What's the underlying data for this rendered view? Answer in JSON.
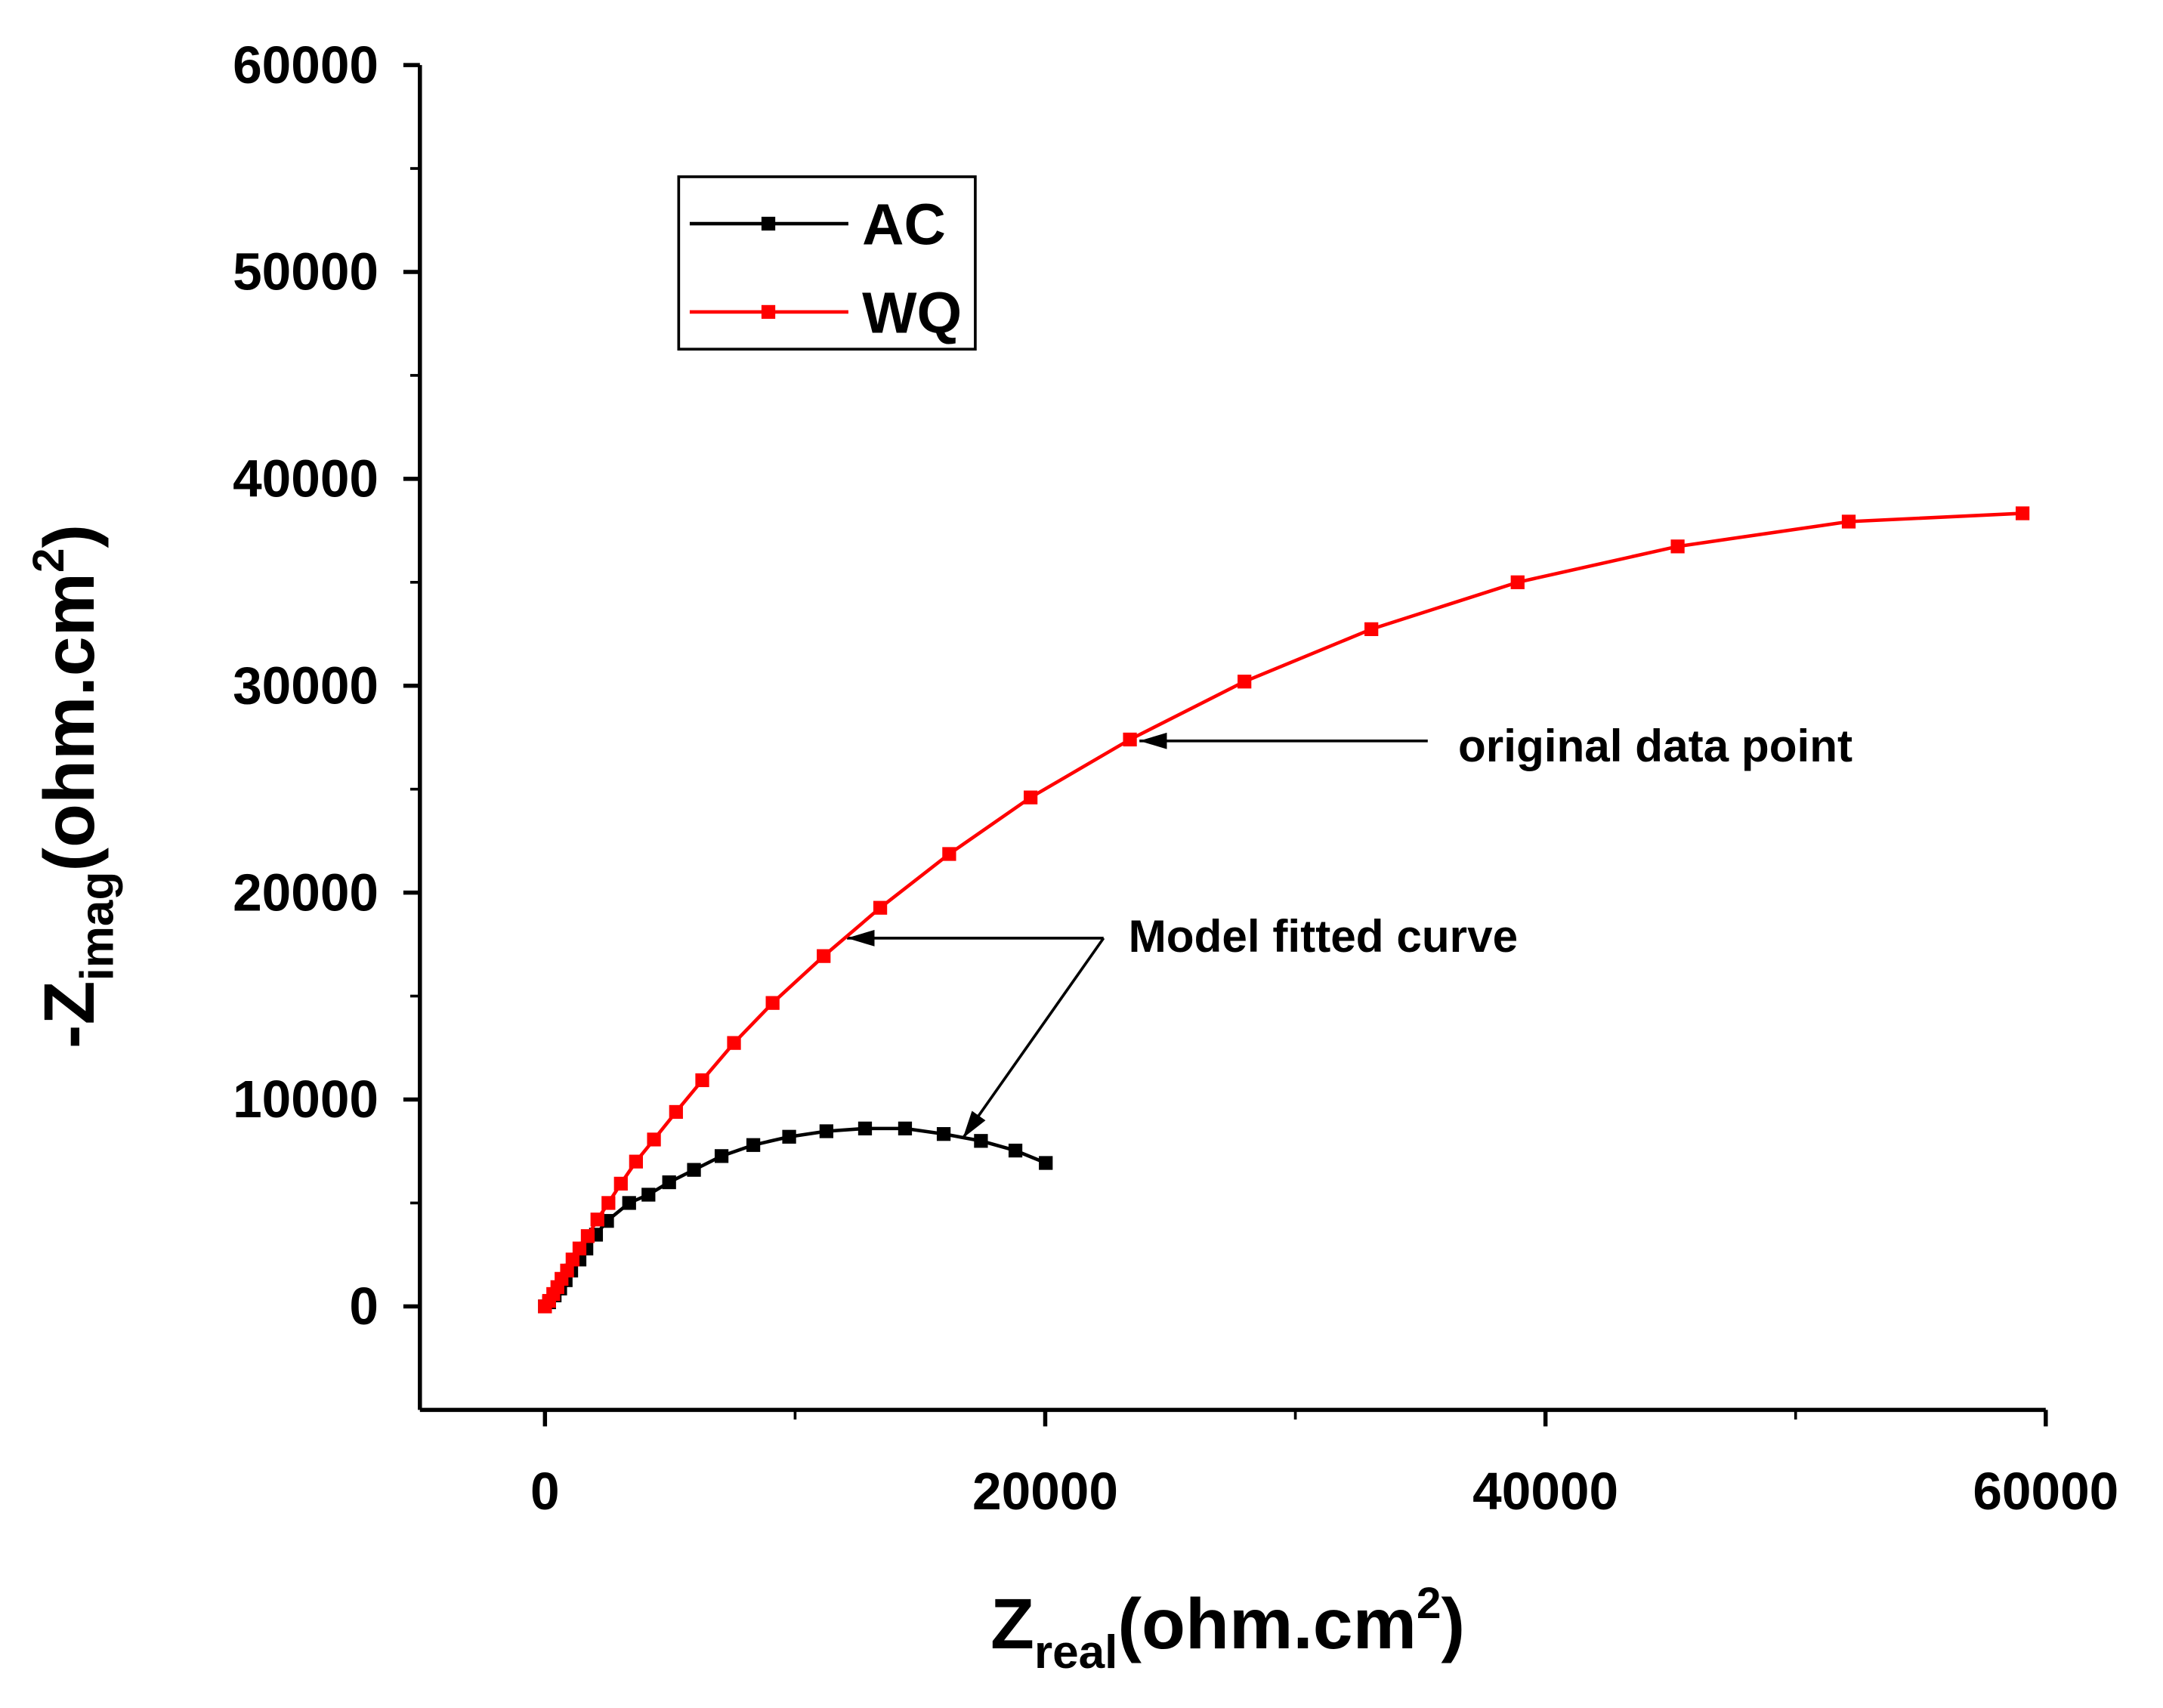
{
  "chart_data": {
    "type": "line",
    "x_label": {
      "main": "Z",
      "sub": "real",
      "unit": "(ohm.cm",
      "sup": "2",
      "close": ")"
    },
    "y_label": {
      "main": "-Z",
      "sub": "imag",
      "unit": "(ohm.cm",
      "sup": "2",
      "close": ")"
    },
    "xlim": [
      -5000,
      60000
    ],
    "ylim": [
      -5000,
      60000
    ],
    "xticks": [
      0,
      20000,
      40000,
      60000
    ],
    "xminorticks": [
      10000,
      30000,
      50000
    ],
    "yticks": [
      0,
      10000,
      20000,
      30000,
      40000,
      50000,
      60000
    ],
    "yminorticks": [
      5000,
      15000,
      25000,
      35000,
      45000,
      55000
    ],
    "legend": "upper left",
    "series": [
      {
        "name": "AC",
        "color": "#000000",
        "x": [
          0,
          165,
          386,
          607,
          827,
          1048,
          1379,
          1655,
          2041,
          2482,
          3365,
          4137,
          4964,
          5957,
          7060,
          8329,
          9763,
          11252,
          12796,
          14396,
          15940,
          17430,
          18809,
          20022
        ],
        "values": [
          0,
          200,
          533,
          867,
          1267,
          1733,
          2267,
          2800,
          3467,
          4133,
          5000,
          5400,
          6000,
          6600,
          7267,
          7800,
          8200,
          8467,
          8600,
          8600,
          8333,
          8000,
          7533,
          6933
        ]
      },
      {
        "name": "WQ",
        "color": "#ff0000",
        "x": [
          0,
          165,
          331,
          496,
          662,
          883,
          1103,
          1379,
          1710,
          2096,
          2537,
          3034,
          3640,
          4357,
          5240,
          6288,
          7557,
          9101,
          11142,
          13403,
          16161,
          19415,
          23386,
          27965,
          33039,
          38886,
          45284,
          52123,
          59073
        ],
        "values": [
          0,
          267,
          600,
          933,
          1333,
          1733,
          2267,
          2800,
          3400,
          4200,
          5000,
          5933,
          7000,
          8067,
          9400,
          10933,
          12733,
          14667,
          16933,
          19267,
          21867,
          24600,
          27400,
          30200,
          32733,
          35000,
          36733,
          37933,
          38333
        ]
      }
    ],
    "annotations": [
      "original data point",
      "Model fitted curve"
    ]
  }
}
